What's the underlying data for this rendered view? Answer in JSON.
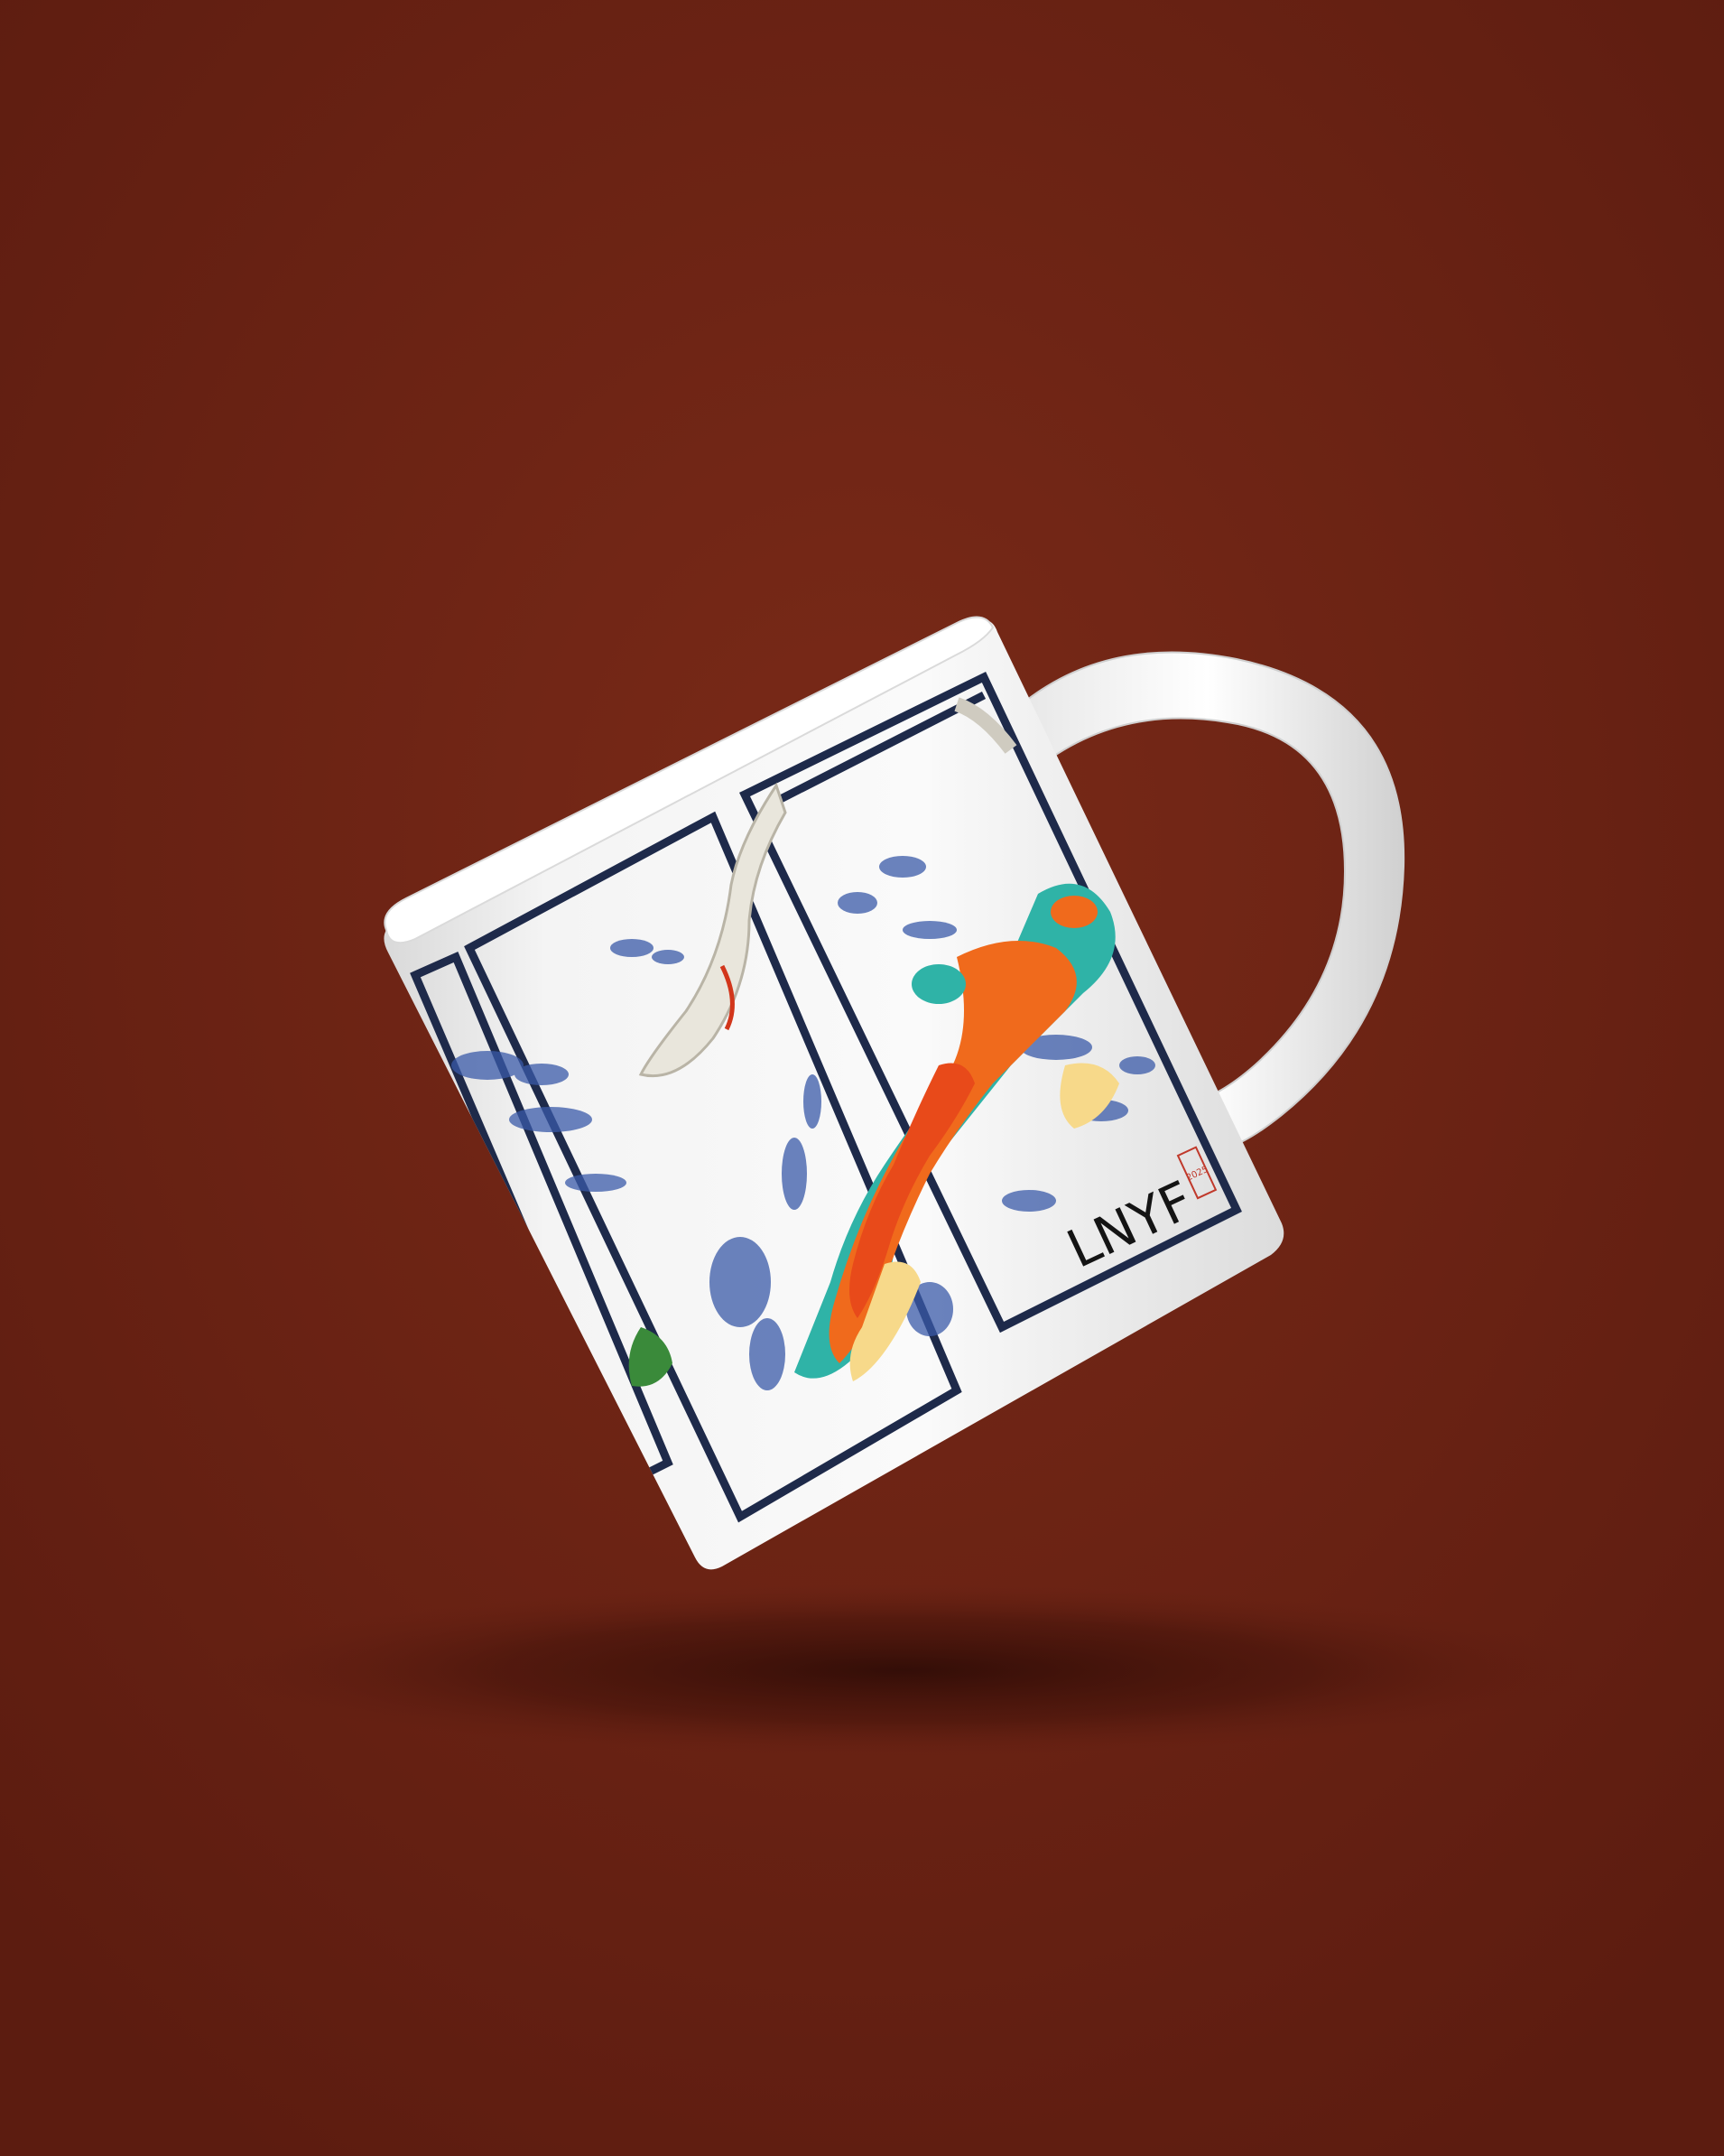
{
  "scene": {
    "description_free": true,
    "background_color": "#6e2314",
    "background_shadow_color": "#3a0f08",
    "mug_color": "#f2f2f2",
    "frame_color": "#1e2a4a",
    "ink_color": "#3a5aa8",
    "cloud_colors": [
      "#f06a1c",
      "#2fb3a7",
      "#f7d98a",
      "#e84a1a"
    ]
  },
  "mug_print": {
    "signature_text": "LNYF",
    "seal_text": "2025"
  }
}
